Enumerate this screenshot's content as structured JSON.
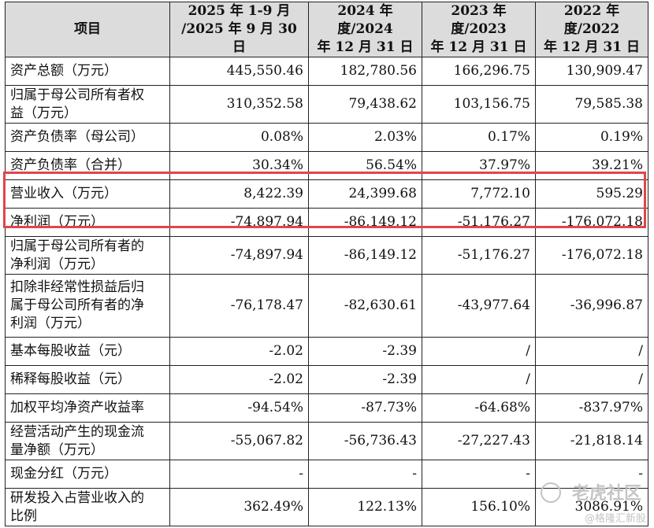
{
  "header": {
    "item": "项目",
    "col1_l1": "2025 年 1-9 月",
    "col1_l2": "/2025 年 9 月 30 日",
    "col2_l1": "2024 年度/2024",
    "col2_l2": "年 12 月 31 日",
    "col3_l1": "2023 年度/2023",
    "col3_l2": "年 12 月 31 日",
    "col4_l1": "2022 年度/2022",
    "col4_l2": "年 12 月 31 日"
  },
  "rows": [
    {
      "label": "资产总额（万元）",
      "v1": "445,550.46",
      "v2": "182,780.56",
      "v3": "166,296.75",
      "v4": "130,909.47"
    },
    {
      "label_l1": "归属于母公司所有者权",
      "label_l2": "益（万元）",
      "v1": "310,352.58",
      "v2": "79,438.62",
      "v3": "103,156.75",
      "v4": "79,585.38"
    },
    {
      "label": "资产负债率（母公司）",
      "v1": "0.08%",
      "v2": "2.03%",
      "v3": "0.17%",
      "v4": "0.19%"
    },
    {
      "label": "资产负债率（合并）",
      "v1": "30.34%",
      "v2": "56.54%",
      "v3": "37.97%",
      "v4": "39.21%"
    },
    {
      "label": "营业收入（万元）",
      "v1": "8,422.39",
      "v2": "24,399.68",
      "v3": "7,772.10",
      "v4": "595.29"
    },
    {
      "label": "净利润（万元）",
      "v1": "-74,897.94",
      "v2": "-86,149.12",
      "v3": "-51,176.27",
      "v4": "-176,072.18"
    },
    {
      "label_l1": "归属于母公司所有者的",
      "label_l2": "净利润（万元）",
      "v1": "-74,897.94",
      "v2": "-86,149.12",
      "v3": "-51,176.27",
      "v4": "-176,072.18"
    },
    {
      "label_l1": "扣除非经常性损益后归",
      "label_l2": "属于母公司所有者的净",
      "label_l3": "利润（万元）",
      "v1": "-76,178.47",
      "v2": "-82,630.61",
      "v3": "-43,977.64",
      "v4": "-36,996.87"
    },
    {
      "label": "基本每股收益（元）",
      "v1": "-2.02",
      "v2": "-2.39",
      "v3": "/",
      "v4": "/"
    },
    {
      "label": "稀释每股收益（元）",
      "v1": "-2.02",
      "v2": "-2.39",
      "v3": "/",
      "v4": "/"
    },
    {
      "label": "加权平均净资产收益率",
      "v1": "-94.54%",
      "v2": "-87.73%",
      "v3": "-64.68%",
      "v4": "-837.97%"
    },
    {
      "label_l1": "经营活动产生的现金流",
      "label_l2": "量净额（万元）",
      "v1": "-55,067.82",
      "v2": "-56,736.43",
      "v3": "-27,227.43",
      "v4": "-21,818.14"
    },
    {
      "label": "现金分红（万元）",
      "v1": "-",
      "v2": "-",
      "v3": "-",
      "v4": "-"
    },
    {
      "label_l1": "研发投入占营业收入的",
      "label_l2": "比例",
      "v1": "362.49%",
      "v2": "122.13%",
      "v3": "156.10%",
      "v4": "3086.91%"
    }
  ],
  "highlight": {
    "color": "#e0454b"
  },
  "watermark": {
    "text": "老虎社区",
    "sub": "@格隆汇新股"
  }
}
